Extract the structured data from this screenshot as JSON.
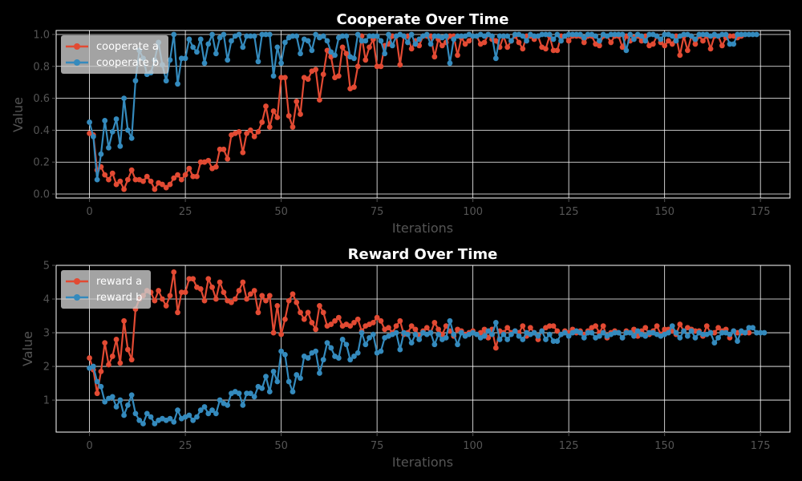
{
  "colors": {
    "background": "#000000",
    "grid": "#ffffff",
    "axis_text": "#555555",
    "title_text": "#ffffff",
    "series_a": "#e24a33",
    "series_b": "#348abd",
    "legend_bg": "#cccccc",
    "legend_text": "#ffffff"
  },
  "chart_data": [
    {
      "type": "line",
      "title": "Cooperate Over Time",
      "xlabel": "Iterations",
      "ylabel": "Value",
      "xlim": [
        -8.7,
        182.7
      ],
      "ylim": [
        -0.025,
        1.025
      ],
      "xticks": [
        0,
        25,
        50,
        75,
        100,
        125,
        150,
        175
      ],
      "yticks": [
        0.0,
        0.2,
        0.4,
        0.6,
        0.8,
        1.0
      ],
      "ytick_labels": [
        "0.0",
        "0.2",
        "0.4",
        "0.6",
        "0.8",
        "1.0"
      ],
      "grid": true,
      "legend_position": "top-left",
      "series": [
        {
          "name": "cooperate a",
          "color_key": "series_a",
          "values": [
            0.38,
            0.37,
            0.15,
            0.17,
            0.12,
            0.09,
            0.13,
            0.06,
            0.08,
            0.03,
            0.09,
            0.15,
            0.09,
            0.09,
            0.08,
            0.11,
            0.08,
            0.03,
            0.07,
            0.06,
            0.04,
            0.06,
            0.1,
            0.12,
            0.09,
            0.12,
            0.16,
            0.11,
            0.11,
            0.2,
            0.2,
            0.21,
            0.16,
            0.17,
            0.28,
            0.28,
            0.22,
            0.37,
            0.38,
            0.39,
            0.26,
            0.38,
            0.4,
            0.36,
            0.39,
            0.45,
            0.55,
            0.42,
            0.52,
            0.48,
            0.73,
            0.73,
            0.49,
            0.42,
            0.58,
            0.5,
            0.73,
            0.72,
            0.77,
            0.78,
            0.59,
            0.75,
            0.9,
            0.86,
            0.73,
            0.74,
            0.92,
            0.88,
            0.66,
            0.67,
            0.8,
            0.99,
            0.84,
            0.92,
            0.97,
            0.8,
            0.8,
            0.93,
            0.94,
            0.99,
            0.99,
            0.81,
            0.99,
            0.99,
            0.91,
            0.96,
            0.93,
            0.99,
            0.99,
            0.99,
            0.86,
            0.97,
            0.93,
            0.95,
            0.99,
            0.99,
            0.87,
            0.98,
            0.94,
            0.96,
            0.99,
            0.99,
            0.94,
            0.95,
            1.0,
            0.97,
            0.96,
            0.92,
            0.99,
            0.92,
            0.96,
            0.99,
            0.95,
            0.91,
            0.99,
            0.99,
            0.97,
            0.99,
            0.92,
            0.91,
            0.99,
            0.9,
            0.9,
            0.99,
            0.99,
            0.96,
            0.99,
            0.99,
            0.99,
            0.95,
            0.99,
            0.99,
            0.94,
            0.93,
            0.99,
            0.99,
            0.95,
            0.99,
            0.99,
            0.92,
            0.99,
            0.96,
            0.98,
            0.99,
            0.96,
            0.99,
            0.93,
            0.94,
            0.99,
            0.95,
            0.93,
            0.96,
            0.94,
            0.99,
            0.87,
            0.99,
            0.9,
            0.99,
            0.94,
            0.99,
            0.96,
            0.99,
            0.91,
            0.99,
            0.99,
            0.93,
            0.98,
            0.99,
            0.99,
            0.98,
            0.99
          ]
        },
        {
          "name": "cooperate b",
          "color_key": "series_b",
          "values": [
            0.45,
            0.36,
            0.09,
            0.25,
            0.46,
            0.29,
            0.39,
            0.47,
            0.3,
            0.6,
            0.4,
            0.35,
            0.71,
            0.9,
            0.85,
            0.75,
            0.76,
            0.84,
            0.95,
            0.81,
            0.71,
            0.84,
            1.0,
            0.69,
            0.85,
            0.85,
            0.97,
            0.92,
            0.89,
            0.97,
            0.82,
            0.94,
            1.0,
            0.88,
            0.98,
            1.0,
            0.84,
            0.96,
            0.99,
            1.0,
            0.92,
            0.99,
            0.99,
            0.99,
            0.83,
            1.0,
            1.0,
            1.0,
            0.74,
            0.92,
            0.82,
            0.95,
            0.98,
            0.99,
            0.99,
            0.88,
            0.97,
            0.96,
            0.9,
            1.0,
            0.98,
            0.99,
            0.96,
            0.89,
            0.87,
            0.98,
            0.99,
            0.99,
            0.86,
            0.85,
            1.0,
            0.96,
            0.96,
            0.99,
            0.99,
            0.99,
            0.96,
            0.88,
            1.0,
            0.93,
            0.99,
            1.0,
            0.99,
            0.95,
            1.0,
            0.94,
            0.97,
            0.99,
            1.0,
            0.94,
            0.99,
            0.99,
            0.98,
            0.99,
            0.82,
            0.97,
            0.99,
            0.99,
            0.99,
            1.0,
            0.99,
            0.99,
            1.0,
            0.99,
            1.0,
            0.99,
            0.85,
            0.99,
            0.99,
            0.99,
            0.96,
            1.0,
            1.0,
            0.99,
            0.96,
            1.0,
            0.99,
            0.99,
            1.0,
            1.0,
            1.0,
            0.97,
            1.0,
            0.96,
            0.99,
            1.0,
            1.0,
            1.0,
            1.0,
            0.98,
            1.0,
            1.0,
            0.99,
            0.96,
            1.0,
            0.99,
            1.0,
            1.0,
            1.0,
            1.0,
            0.9,
            1.0,
            0.97,
            1.0,
            0.99,
            0.96,
            1.0,
            1.0,
            0.99,
            0.97,
            1.0,
            1.0,
            0.99,
            0.96,
            0.99,
            1.0,
            1.0,
            0.99,
            0.97,
            1.0,
            1.0,
            1.0,
            0.99,
            1.0,
            0.99,
            1.0,
            1.0,
            0.94,
            0.94,
            1.0,
            1.0,
            1.0,
            1.0,
            1.0,
            1.0
          ]
        }
      ]
    },
    {
      "type": "line",
      "title": "Reward Over Time",
      "xlabel": "Iterations",
      "ylabel": "Value",
      "xlim": [
        -8.7,
        182.7
      ],
      "ylim": [
        0.05,
        5.0
      ],
      "xticks": [
        0,
        25,
        50,
        75,
        100,
        125,
        150,
        175
      ],
      "yticks": [
        1,
        2,
        3,
        4,
        5
      ],
      "ytick_labels": [
        "1",
        "2",
        "3",
        "4",
        "5"
      ],
      "grid": true,
      "legend_position": "top-left",
      "series": [
        {
          "name": "reward a",
          "color_key": "series_a",
          "values": [
            2.25,
            1.9,
            1.2,
            1.85,
            2.7,
            2.05,
            2.3,
            2.8,
            2.1,
            3.35,
            2.5,
            2.2,
            3.7,
            4.0,
            4.1,
            4.25,
            4.2,
            3.95,
            4.25,
            4.0,
            3.8,
            4.1,
            4.8,
            3.6,
            4.2,
            4.2,
            4.6,
            4.6,
            4.35,
            4.3,
            3.95,
            4.6,
            4.35,
            4.0,
            4.5,
            4.2,
            3.95,
            3.9,
            4.0,
            4.25,
            4.5,
            4.0,
            4.15,
            4.25,
            3.6,
            4.1,
            3.95,
            4.1,
            3.0,
            3.8,
            2.95,
            3.4,
            3.95,
            4.15,
            3.9,
            3.6,
            3.4,
            3.6,
            3.3,
            3.1,
            3.8,
            3.6,
            3.2,
            3.25,
            3.35,
            3.45,
            3.2,
            3.25,
            3.2,
            3.3,
            3.4,
            3.05,
            3.2,
            3.25,
            3.3,
            3.45,
            3.35,
            3.1,
            3.15,
            3.0,
            3.2,
            3.35,
            2.95,
            3.0,
            3.2,
            3.1,
            2.9,
            3.05,
            3.15,
            3.0,
            3.3,
            3.1,
            2.95,
            3.2,
            3.05,
            2.9,
            3.1,
            3.05,
            2.95,
            3.0,
            3.05,
            2.95,
            3.0,
            3.1,
            2.85,
            3.1,
            2.55,
            3.05,
            3.0,
            3.15,
            3.0,
            3.05,
            3.0,
            3.2,
            2.9,
            3.15,
            3.0,
            2.8,
            3.05,
            3.15,
            3.2,
            3.2,
            3.05,
            2.95,
            3.05,
            3.0,
            3.1,
            3.0,
            3.05,
            2.95,
            3.05,
            3.15,
            3.2,
            3.0,
            3.2,
            2.85,
            3.0,
            3.05,
            3.0,
            2.85,
            3.05,
            3.0,
            3.1,
            2.9,
            3.05,
            3.15,
            2.95,
            3.05,
            3.2,
            2.95,
            3.1,
            3.1,
            3.05,
            2.95,
            3.25,
            3.05,
            3.15,
            3.1,
            3.05,
            3.05,
            2.9,
            3.2,
            3.0,
            3.0,
            3.15,
            3.05,
            3.1,
            2.85,
            3.05,
            3.0,
            3.0,
            3.0,
            3.0
          ]
        },
        {
          "name": "reward b",
          "color_key": "series_b",
          "values": [
            1.95,
            2.0,
            1.55,
            1.4,
            0.95,
            1.05,
            1.1,
            0.8,
            1.0,
            0.55,
            0.85,
            1.15,
            0.6,
            0.4,
            0.3,
            0.6,
            0.5,
            0.3,
            0.4,
            0.45,
            0.4,
            0.45,
            0.35,
            0.7,
            0.45,
            0.5,
            0.55,
            0.4,
            0.5,
            0.7,
            0.8,
            0.6,
            0.7,
            0.6,
            1.0,
            0.9,
            0.85,
            1.2,
            1.25,
            1.2,
            0.85,
            1.2,
            1.2,
            1.1,
            1.4,
            1.35,
            1.7,
            1.25,
            1.85,
            1.55,
            2.45,
            2.35,
            1.55,
            1.25,
            1.75,
            1.65,
            2.3,
            2.25,
            2.4,
            2.45,
            1.8,
            2.2,
            2.7,
            2.55,
            2.3,
            2.25,
            2.8,
            2.65,
            2.2,
            2.3,
            2.4,
            3.0,
            2.65,
            2.85,
            2.95,
            2.4,
            2.45,
            2.85,
            2.9,
            2.95,
            3.0,
            2.5,
            3.0,
            2.95,
            2.7,
            2.95,
            2.8,
            3.0,
            2.95,
            3.0,
            2.65,
            2.95,
            2.8,
            2.85,
            3.35,
            2.95,
            2.65,
            3.0,
            2.9,
            2.95,
            3.0,
            2.95,
            2.85,
            2.9,
            3.05,
            2.95,
            3.3,
            2.8,
            2.95,
            2.8,
            2.95,
            3.05,
            2.9,
            2.8,
            3.0,
            2.95,
            3.0,
            2.9,
            3.05,
            2.8,
            2.95,
            2.75,
            2.75,
            2.95,
            3.0,
            2.9,
            3.0,
            3.05,
            3.0,
            2.85,
            3.0,
            3.0,
            2.85,
            2.9,
            3.0,
            2.9,
            2.95,
            3.0,
            3.0,
            2.85,
            3.0,
            3.0,
            2.9,
            3.05,
            2.95,
            2.9,
            3.0,
            3.0,
            2.95,
            2.9,
            2.95,
            3.0,
            3.2,
            3.0,
            2.85,
            3.05,
            2.9,
            3.05,
            2.85,
            3.0,
            2.95,
            2.95,
            3.0,
            2.7,
            2.85,
            3.0,
            3.0,
            2.95,
            3.05,
            2.75,
            3.05,
            3.0,
            3.15,
            3.15,
            3.0,
            3.0,
            3.0
          ]
        }
      ]
    }
  ]
}
